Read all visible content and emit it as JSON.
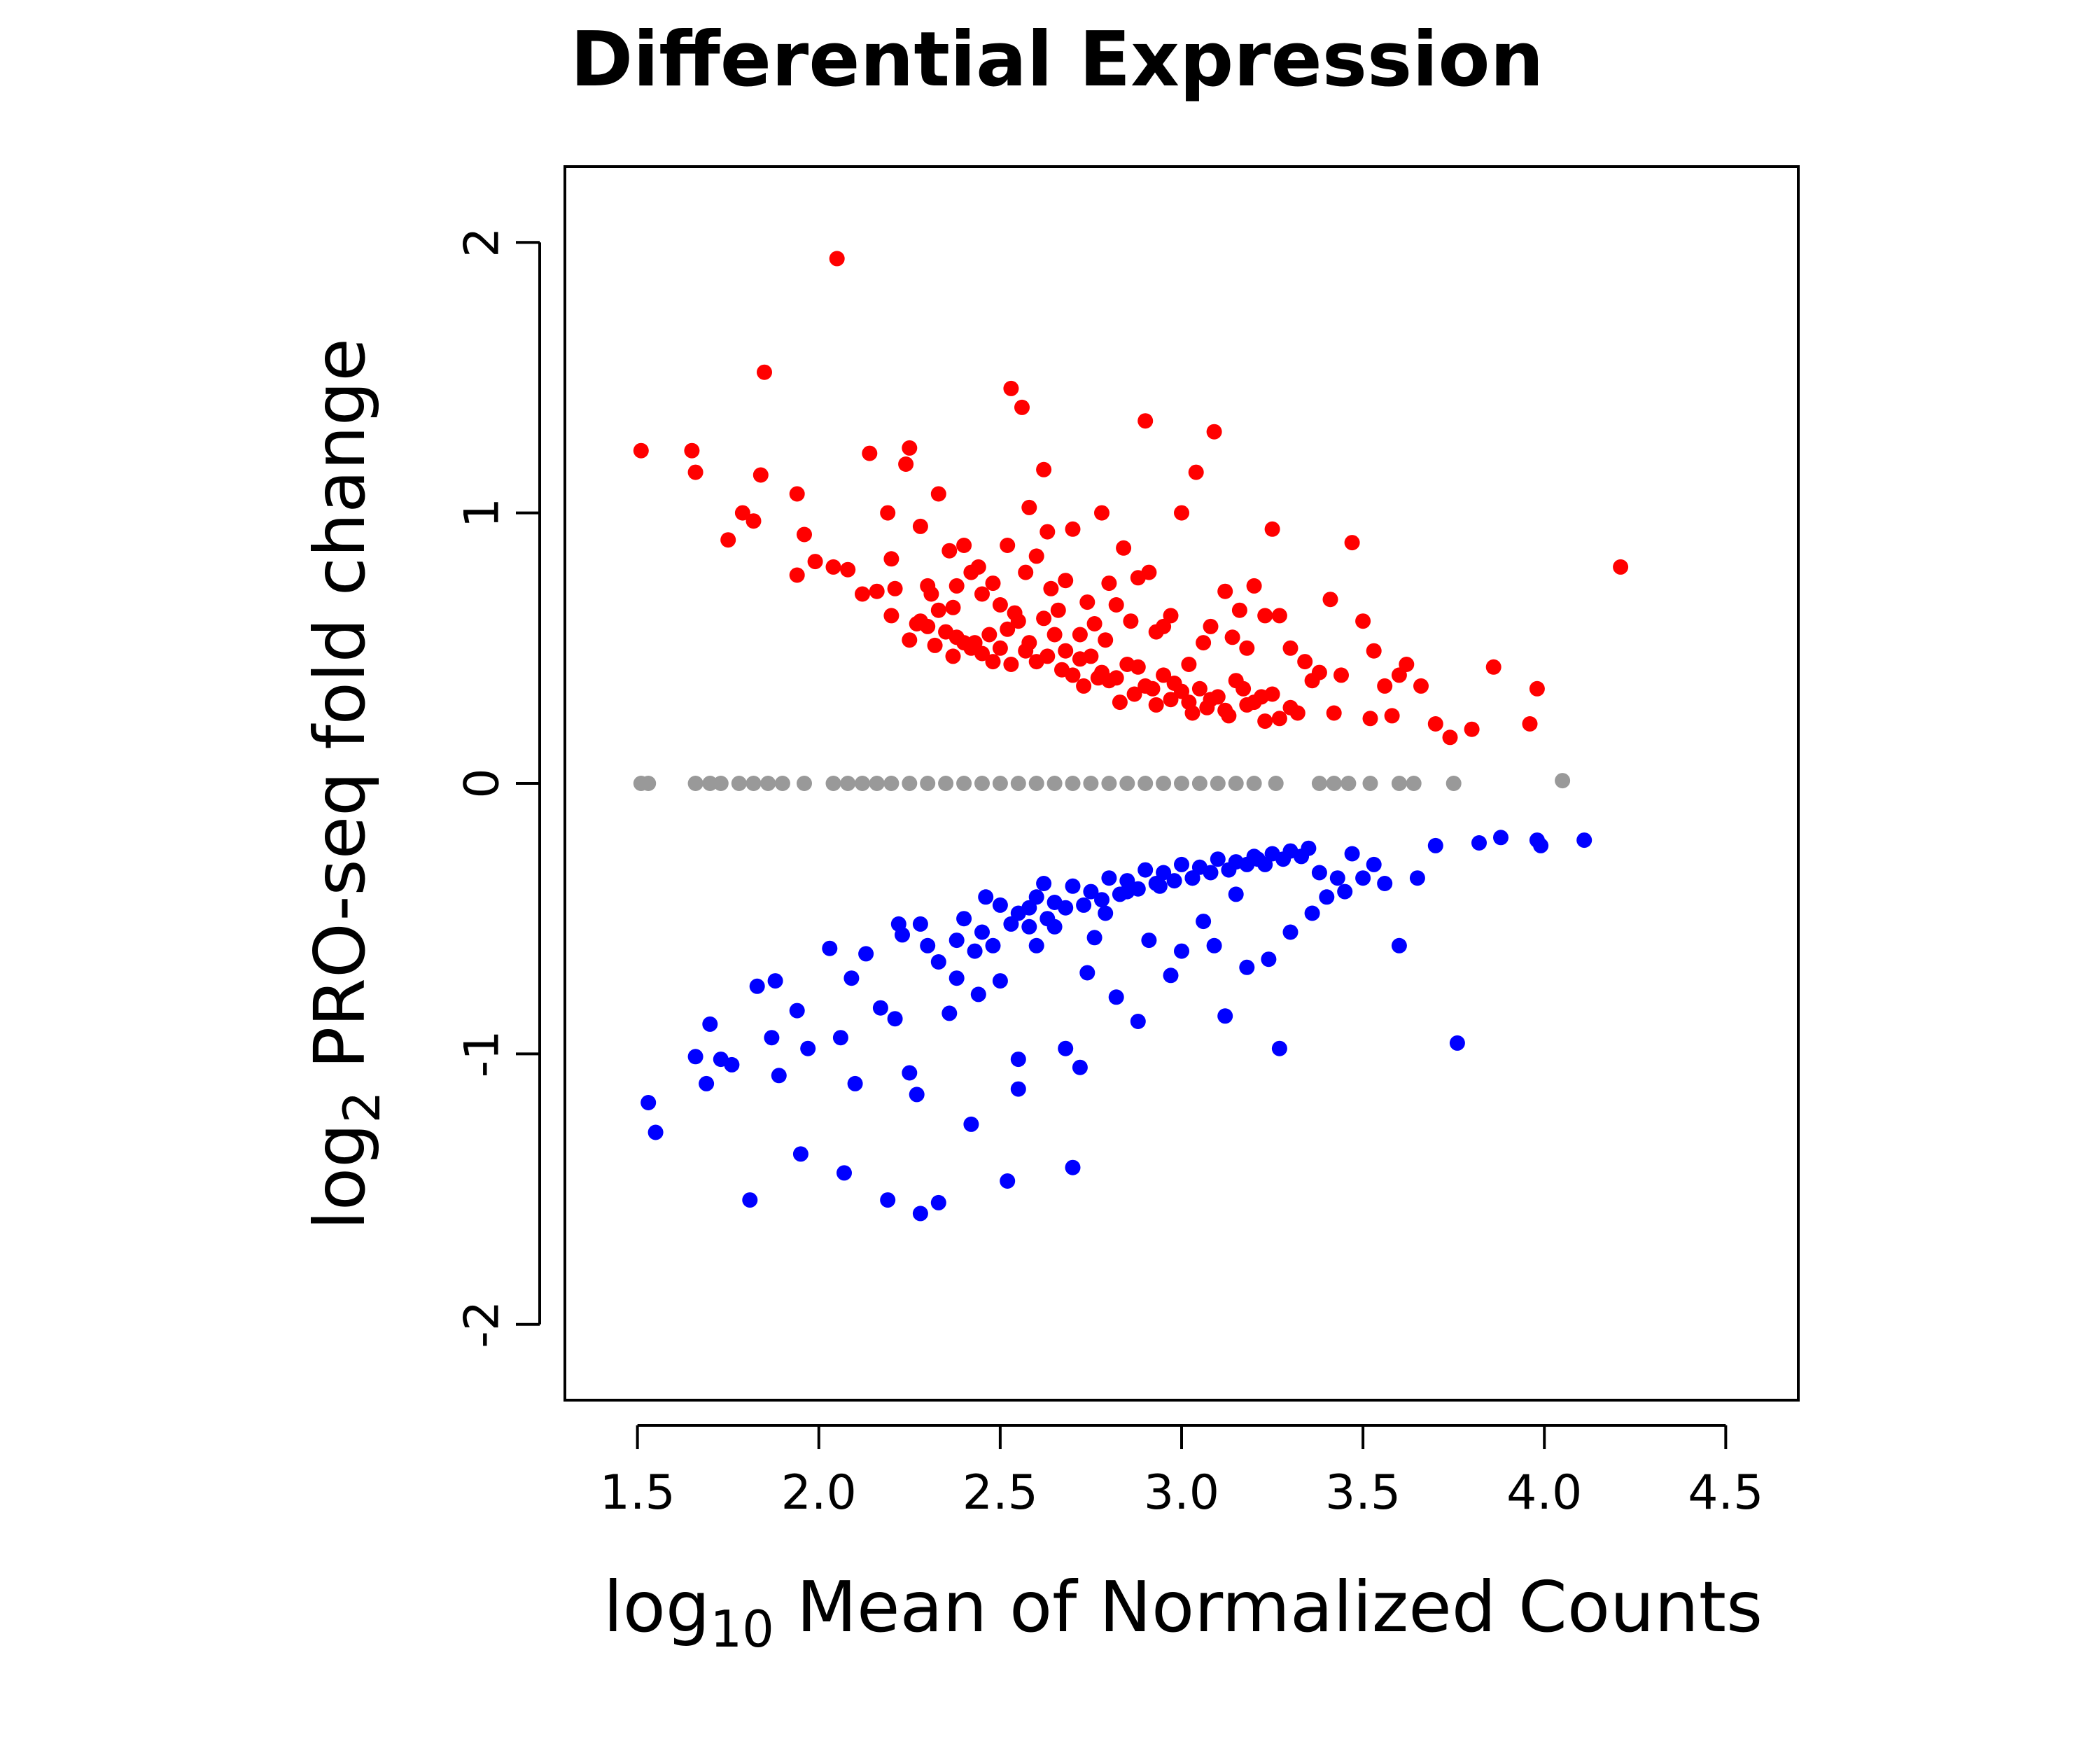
{
  "chart_data": {
    "type": "scatter",
    "title": "Differential Expression",
    "xlabel": {
      "prefix": "log",
      "subscript": "10",
      "text": " Mean of Normalized Counts"
    },
    "ylabel": {
      "prefix": "log",
      "subscript": "2",
      "text": " PRO-seq fold change"
    },
    "xlim": [
      1.3,
      4.7
    ],
    "ylim": [
      -2.28,
      2.28
    ],
    "x_ticks": [
      1.5,
      2.0,
      2.5,
      3.0,
      3.5,
      4.0,
      4.5
    ],
    "x_tick_labels": [
      "1.5",
      "2.0",
      "2.5",
      "3.0",
      "3.5",
      "4.0",
      "4.5"
    ],
    "y_ticks": [
      -2,
      -1,
      0,
      1,
      2
    ],
    "y_tick_labels": [
      "-2",
      "-1",
      "0",
      "1",
      "2"
    ],
    "grid": false,
    "legend": "none",
    "colors": {
      "up": "#ff0000",
      "down": "#0000ff",
      "unchanged": "#999999"
    },
    "series": [
      {
        "color_key": "up",
        "x": [
          1.51,
          1.65,
          1.66,
          1.75,
          1.79,
          1.82,
          1.84,
          1.85,
          1.94,
          1.94,
          1.96,
          1.99,
          2.04,
          2.05,
          2.08,
          2.12,
          2.14,
          2.16,
          2.19,
          2.2,
          2.21,
          2.24,
          2.25,
          2.28,
          2.3,
          2.31,
          2.33,
          2.36,
          2.37,
          2.38,
          2.4,
          2.42,
          2.44,
          2.45,
          2.48,
          2.5,
          2.52,
          2.53,
          2.54,
          2.56,
          2.57,
          2.58,
          2.6,
          2.62,
          2.63,
          2.64,
          2.66,
          2.68,
          2.7,
          2.72,
          2.74,
          2.76,
          2.78,
          2.79,
          2.8,
          2.82,
          2.84,
          2.86,
          2.88,
          2.9,
          2.91,
          2.93,
          2.95,
          2.97,
          3.0,
          3.02,
          3.04,
          3.06,
          3.08,
          3.09,
          3.12,
          3.14,
          3.16,
          3.18,
          3.2,
          3.23,
          3.25,
          3.27,
          3.3,
          3.34,
          3.36,
          3.38,
          3.41,
          3.44,
          3.47,
          3.5,
          3.53,
          3.56,
          3.6,
          3.62,
          3.66,
          3.7,
          3.74,
          3.8,
          3.86,
          3.96,
          3.98,
          4.21,
          2.6,
          2.7,
          2.8,
          2.9,
          3.0,
          3.1,
          2.5,
          2.4,
          2.3,
          2.2,
          3.2,
          3.3,
          2.65,
          2.75,
          2.85,
          2.95,
          3.05,
          2.55,
          2.45,
          2.35,
          2.25,
          3.15,
          3.25,
          2.58,
          2.68,
          2.78,
          2.88,
          2.98,
          3.08,
          2.48,
          2.38,
          2.28,
          3.18,
          2.62,
          2.72,
          2.82,
          2.92,
          3.02,
          3.12,
          2.52,
          2.42,
          2.32,
          3.22,
          3.32,
          2.67,
          2.77,
          2.87,
          2.97,
          3.07,
          2.57,
          2.47,
          2.37,
          2.27,
          3.17,
          3.27,
          2.63,
          2.73,
          2.83,
          2.93,
          3.03,
          3.13,
          2.53,
          2.43,
          2.33,
          3.23,
          3.42,
          3.52,
          3.58
        ],
        "y": [
          1.23,
          1.23,
          1.15,
          0.9,
          1.0,
          0.97,
          1.14,
          1.52,
          1.07,
          0.77,
          0.92,
          0.82,
          0.8,
          1.94,
          0.79,
          0.7,
          1.22,
          0.71,
          1.0,
          0.83,
          0.72,
          1.18,
          1.24,
          0.95,
          0.73,
          0.7,
          1.07,
          0.86,
          0.65,
          0.73,
          0.88,
          0.78,
          0.8,
          0.7,
          0.74,
          0.66,
          0.88,
          1.46,
          0.63,
          1.39,
          0.78,
          1.02,
          0.84,
          1.16,
          0.93,
          0.72,
          0.64,
          0.75,
          0.94,
          0.55,
          0.67,
          0.59,
          1.0,
          0.53,
          0.74,
          0.66,
          0.87,
          0.6,
          0.76,
          1.34,
          0.78,
          0.56,
          0.58,
          0.62,
          1.0,
          0.44,
          1.15,
          0.52,
          0.58,
          1.3,
          0.71,
          0.54,
          0.64,
          0.5,
          0.73,
          0.62,
          0.94,
          0.62,
          0.5,
          0.45,
          0.38,
          0.41,
          0.68,
          0.4,
          0.89,
          0.6,
          0.49,
          0.36,
          0.4,
          0.44,
          0.36,
          0.22,
          0.17,
          0.2,
          0.43,
          0.22,
          0.35,
          0.8,
          0.45,
          0.4,
          0.38,
          0.36,
          0.34,
          0.32,
          0.5,
          0.52,
          0.58,
          0.62,
          0.3,
          0.28,
          0.55,
          0.47,
          0.44,
          0.4,
          0.35,
          0.6,
          0.48,
          0.56,
          0.53,
          0.38,
          0.33,
          0.52,
          0.49,
          0.41,
          0.43,
          0.37,
          0.31,
          0.45,
          0.54,
          0.6,
          0.29,
          0.61,
          0.46,
          0.39,
          0.35,
          0.3,
          0.27,
          0.57,
          0.5,
          0.51,
          0.32,
          0.26,
          0.42,
          0.39,
          0.33,
          0.31,
          0.28,
          0.49,
          0.55,
          0.47,
          0.59,
          0.35,
          0.24,
          0.47,
          0.36,
          0.3,
          0.29,
          0.26,
          0.25,
          0.44,
          0.52,
          0.64,
          0.23,
          0.26,
          0.24,
          0.25
        ]
      },
      {
        "color_key": "down",
        "x": [
          1.53,
          1.55,
          1.66,
          1.69,
          1.7,
          1.73,
          1.76,
          1.81,
          1.83,
          1.87,
          1.88,
          1.89,
          1.94,
          1.95,
          1.97,
          2.03,
          2.06,
          2.07,
          2.09,
          2.1,
          2.13,
          2.17,
          2.19,
          2.21,
          2.22,
          2.25,
          2.27,
          2.28,
          2.3,
          2.33,
          2.36,
          2.38,
          2.42,
          2.44,
          2.46,
          2.5,
          2.52,
          2.55,
          2.55,
          2.58,
          2.6,
          2.62,
          2.65,
          2.68,
          2.7,
          2.72,
          2.74,
          2.76,
          2.79,
          2.82,
          2.85,
          2.88,
          2.91,
          2.94,
          2.97,
          3.0,
          3.03,
          3.06,
          3.09,
          3.12,
          3.15,
          3.18,
          3.21,
          3.24,
          3.27,
          3.3,
          3.33,
          3.36,
          3.4,
          3.43,
          3.47,
          3.53,
          3.6,
          3.65,
          3.7,
          3.76,
          3.82,
          3.88,
          3.98,
          3.99,
          4.11,
          2.4,
          2.5,
          2.6,
          2.7,
          2.8,
          2.9,
          3.0,
          3.1,
          3.2,
          3.3,
          2.45,
          2.55,
          2.65,
          2.75,
          2.85,
          2.95,
          3.05,
          3.15,
          3.25,
          3.35,
          2.48,
          2.58,
          2.68,
          2.78,
          2.88,
          2.98,
          3.08,
          3.18,
          3.28,
          2.43,
          2.53,
          2.63,
          2.73,
          2.83,
          2.93,
          3.03,
          3.13,
          3.23,
          3.33,
          2.38,
          2.28,
          2.33,
          2.23,
          3.38,
          3.45,
          3.5,
          3.56
        ],
        "y": [
          -1.18,
          -1.29,
          -1.01,
          -1.11,
          -0.89,
          -1.02,
          -1.04,
          -1.54,
          -0.75,
          -0.94,
          -0.73,
          -1.08,
          -0.84,
          -1.37,
          -0.98,
          -0.61,
          -0.94,
          -1.44,
          -0.72,
          -1.11,
          -0.63,
          -0.83,
          -1.54,
          -0.87,
          -0.52,
          -1.07,
          -1.15,
          -1.59,
          -0.6,
          -1.55,
          -0.85,
          -0.72,
          -1.26,
          -0.78,
          -0.42,
          -0.73,
          -1.47,
          -1.02,
          -1.13,
          -0.46,
          -0.6,
          -0.37,
          -0.53,
          -0.98,
          -1.42,
          -1.05,
          -0.7,
          -0.57,
          -0.48,
          -0.79,
          -0.4,
          -0.88,
          -0.58,
          -0.38,
          -0.71,
          -0.62,
          -0.35,
          -0.51,
          -0.6,
          -0.86,
          -0.41,
          -0.68,
          -0.28,
          -0.65,
          -0.98,
          -0.55,
          -0.27,
          -0.48,
          -0.42,
          -0.35,
          -0.26,
          -0.3,
          -0.6,
          -0.35,
          -0.23,
          -0.96,
          -0.22,
          -0.2,
          -0.21,
          -0.23,
          -0.21,
          -0.5,
          -0.45,
          -0.42,
          -0.38,
          -0.35,
          -0.32,
          -0.3,
          -0.28,
          -0.27,
          -0.25,
          -0.55,
          -0.48,
          -0.44,
          -0.4,
          -0.36,
          -0.33,
          -0.31,
          -0.29,
          -0.26,
          -0.24,
          -0.6,
          -0.53,
          -0.46,
          -0.43,
          -0.39,
          -0.36,
          -0.33,
          -0.3,
          -0.28,
          -0.62,
          -0.52,
          -0.5,
          -0.45,
          -0.41,
          -0.37,
          -0.35,
          -0.32,
          -0.3,
          -0.27,
          -0.58,
          -0.52,
          -0.66,
          -0.56,
          -0.33,
          -0.4,
          -0.35,
          -0.37
        ]
      },
      {
        "color_key": "unchanged",
        "x": [
          1.51,
          1.53,
          1.66,
          1.7,
          1.73,
          1.78,
          1.82,
          1.86,
          1.9,
          1.96,
          2.04,
          2.08,
          2.12,
          2.16,
          2.2,
          2.25,
          2.3,
          2.35,
          2.4,
          2.45,
          2.5,
          2.55,
          2.6,
          2.65,
          2.7,
          2.75,
          2.8,
          2.85,
          2.9,
          2.95,
          3.0,
          3.05,
          3.1,
          3.15,
          3.2,
          3.26,
          3.38,
          3.42,
          3.46,
          3.52,
          3.6,
          3.64,
          3.75,
          4.05
        ],
        "y": [
          0.0,
          0.0,
          0.0,
          0.0,
          0.0,
          0.0,
          0.0,
          0.0,
          0.0,
          0.0,
          0.0,
          0.0,
          0.0,
          0.0,
          0.0,
          0.0,
          0.0,
          0.0,
          0.0,
          0.0,
          0.0,
          0.0,
          0.0,
          0.0,
          0.0,
          0.0,
          0.0,
          0.0,
          0.0,
          0.0,
          0.0,
          0.0,
          0.0,
          0.0,
          0.0,
          0.0,
          0.0,
          0.0,
          0.0,
          0.0,
          0.0,
          0.0,
          0.0,
          0.01
        ]
      }
    ]
  }
}
